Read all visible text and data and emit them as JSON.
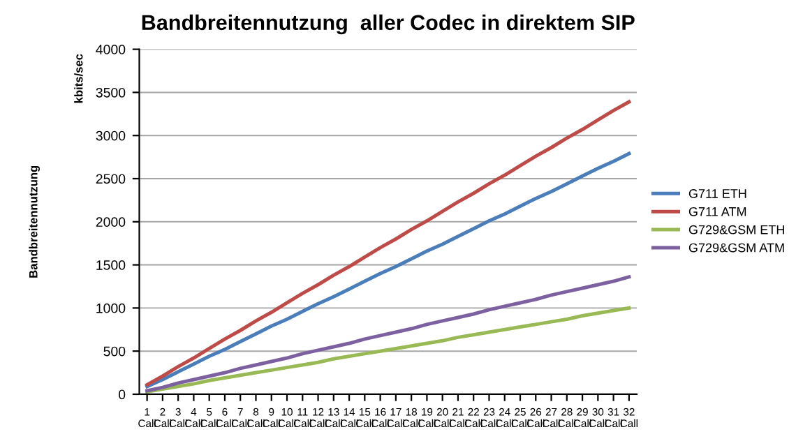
{
  "chart_data": {
    "type": "line",
    "title": "Bandbreitennutzung  aller Codec in direktem SIP",
    "ylabel": "Bandbreitennutzung",
    "annotations": [
      "kbits/sec"
    ],
    "categories": [
      "1\nCall",
      "2\nCall",
      "3\nCall",
      "4\nCall",
      "5\nCall",
      "6\nCall",
      "7\nCall",
      "8\nCall",
      "9\nCall",
      "10\nCall",
      "11\nCall",
      "12\nCall",
      "13\nCall",
      "14\nCall",
      "15\nCall",
      "16\nCall",
      "17\nCall",
      "18\nCall",
      "19\nCall",
      "20\nCall",
      "21\nCall",
      "22\nCall",
      "23\nCall",
      "24\nCall",
      "25\nCall",
      "26\nCall",
      "27\nCall",
      "28\nCall",
      "29\nCall",
      "30\nCall",
      "31\nCall",
      "32\nCall"
    ],
    "series": [
      {
        "name": "G711 ETH",
        "color": "#4a7ebb",
        "values": [
          90,
          170,
          260,
          350,
          440,
          520,
          610,
          700,
          790,
          870,
          960,
          1050,
          1130,
          1220,
          1310,
          1400,
          1480,
          1570,
          1660,
          1740,
          1830,
          1920,
          2010,
          2090,
          2180,
          2270,
          2350,
          2440,
          2530,
          2620,
          2700,
          2790
        ]
      },
      {
        "name": "G711 ATM",
        "color": "#be4b48",
        "values": [
          110,
          210,
          320,
          420,
          530,
          640,
          740,
          850,
          950,
          1060,
          1170,
          1270,
          1380,
          1480,
          1590,
          1700,
          1800,
          1910,
          2010,
          2120,
          2230,
          2330,
          2440,
          2540,
          2650,
          2760,
          2860,
          2970,
          3070,
          3180,
          3290,
          3390
        ]
      },
      {
        "name": "G729&GSM ETH",
        "color": "#98b954",
        "values": [
          30,
          60,
          90,
          120,
          160,
          190,
          220,
          250,
          280,
          310,
          340,
          370,
          410,
          440,
          470,
          500,
          530,
          560,
          590,
          620,
          660,
          690,
          720,
          750,
          780,
          810,
          840,
          870,
          910,
          940,
          970,
          1000
        ]
      },
      {
        "name": "G729&GSM ATM",
        "color": "#7d60a0",
        "values": [
          40,
          80,
          130,
          170,
          210,
          250,
          300,
          340,
          380,
          420,
          470,
          510,
          550,
          590,
          640,
          680,
          720,
          760,
          810,
          850,
          890,
          930,
          980,
          1020,
          1060,
          1100,
          1150,
          1190,
          1230,
          1270,
          1310,
          1360
        ]
      }
    ],
    "ylim": [
      0,
      4000
    ],
    "yticks": [
      0,
      500,
      1000,
      1500,
      2000,
      2500,
      3000,
      3500,
      4000
    ],
    "grid": "y",
    "legend": "right",
    "marker": "none",
    "line_style": "solid"
  }
}
